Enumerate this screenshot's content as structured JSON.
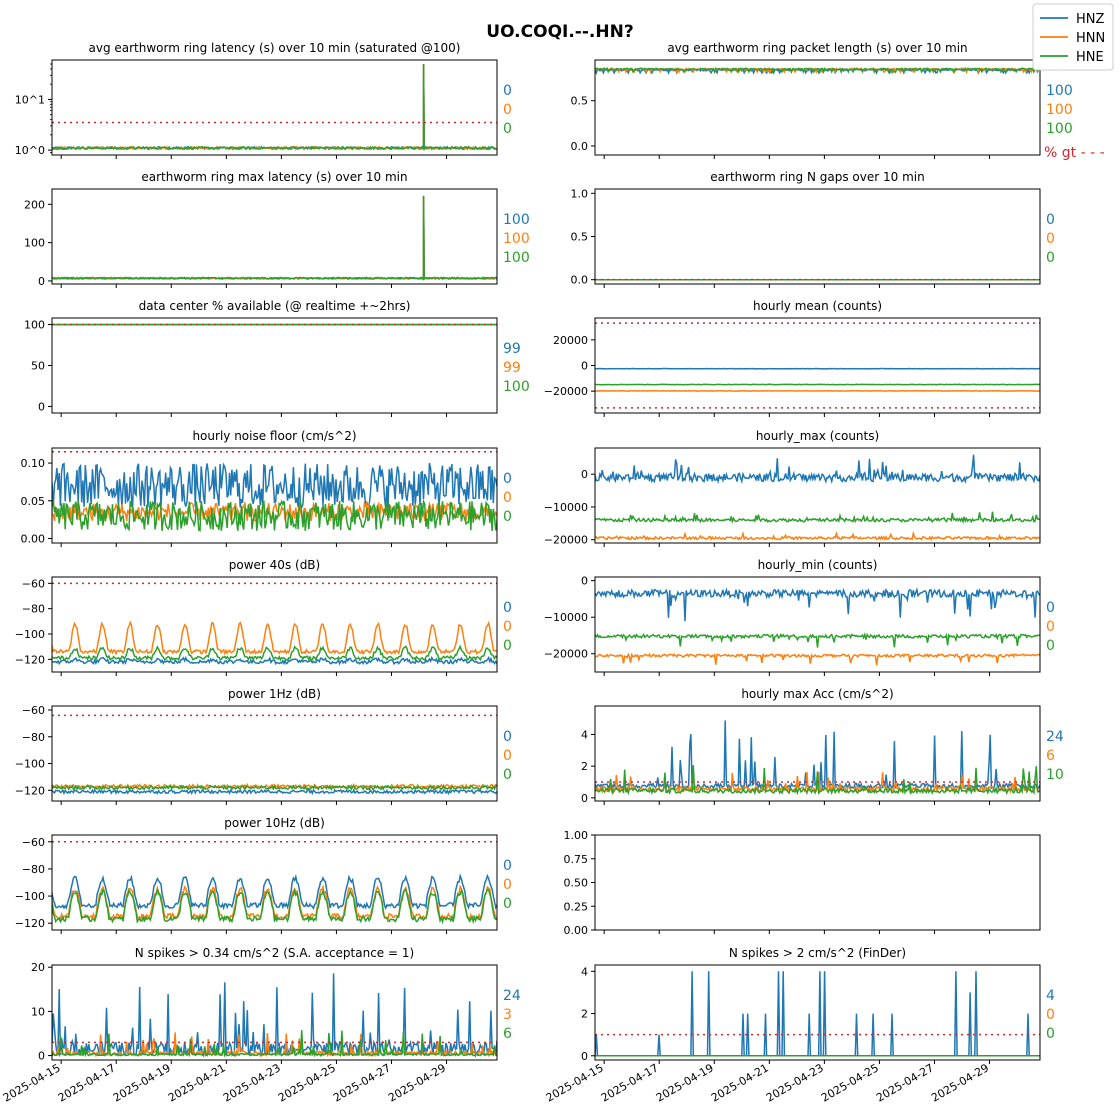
{
  "figure": {
    "title": "UO.COQI.--.HN?",
    "legend": [
      "HNZ",
      "HNN",
      "HNE"
    ],
    "legend_placement": "top-right",
    "colors": {
      "HNZ": "#1f77b4",
      "HNN": "#ff7f0e",
      "HNE": "#2ca02c",
      "threshold": "#d62728"
    },
    "pct_label": "% gt - - -",
    "x_tick_labels": [
      "2025-04-15",
      "2025-04-17",
      "2025-04-19",
      "2025-04-21",
      "2025-04-23",
      "2025-04-25",
      "2025-04-27",
      "2025-04-29"
    ]
  },
  "chart_data": [
    {
      "id": "p0",
      "type": "line",
      "title": "avg earthworm ring latency (s)   over 10 min (saturated @100)",
      "log": true,
      "ylim": [
        0.8,
        60
      ],
      "yticks": [
        1,
        10
      ],
      "ytick_labels": [
        "10^0",
        "10^1"
      ],
      "threshold": 3.5,
      "pct": [
        "0",
        "0",
        "0"
      ],
      "x": [
        "2025-04-15",
        "2025-04-30"
      ],
      "series": [
        {
          "values": [
            1.1,
            1.1
          ]
        },
        {
          "values": [
            1.1,
            1.1
          ]
        },
        {
          "values": [
            1.1,
            1.1
          ]
        }
      ],
      "spikes": [
        "2025-04-14T12:00",
        "2025-04-28T04:00"
      ],
      "spike_value": 50
    },
    {
      "id": "p1",
      "type": "line",
      "title": "avg earthworm ring packet length (s)   over 10 min",
      "ylim": [
        -0.1,
        0.95
      ],
      "yticks": [
        0,
        0.5
      ],
      "ytick_labels": [
        "0.0",
        "0.5"
      ],
      "pct": [
        "100",
        "100",
        "100"
      ],
      "x": [
        "2025-04-15",
        "2025-04-30"
      ],
      "series": [
        {
          "values": [
            0.84,
            0.84
          ]
        },
        {
          "values": [
            0.85,
            0.85
          ]
        },
        {
          "values": [
            0.85,
            0.85
          ]
        }
      ]
    },
    {
      "id": "p2",
      "type": "line",
      "title": "earthworm ring max latency (s)   over 10 min",
      "ylim": [
        -8,
        240
      ],
      "yticks": [
        0,
        100,
        200
      ],
      "ytick_labels": [
        "0",
        "100",
        "200"
      ],
      "pct": [
        "100",
        "100",
        "100"
      ],
      "x": [
        "2025-04-15",
        "2025-04-30"
      ],
      "series": [
        {
          "values": [
            5,
            5
          ]
        },
        {
          "values": [
            5,
            5
          ]
        },
        {
          "values": [
            5,
            5
          ]
        }
      ],
      "spikes": [
        "2025-04-14T12:00",
        "2025-04-28T04:00"
      ],
      "spike_value": 222
    },
    {
      "id": "p3",
      "type": "line",
      "title": "earthworm ring N gaps   over 10 min",
      "ylim": [
        -0.05,
        1.05
      ],
      "yticks": [
        0,
        0.5,
        1
      ],
      "ytick_labels": [
        "0.0",
        "0.5",
        "1.0"
      ],
      "threshold": 0,
      "pct": [
        "0",
        "0",
        "0"
      ],
      "x": [
        "2025-04-15",
        "2025-04-30"
      ],
      "series": [
        {
          "values": [
            0,
            0
          ]
        },
        {
          "values": [
            0,
            0
          ]
        },
        {
          "values": [
            0,
            0
          ]
        }
      ]
    },
    {
      "id": "p4",
      "type": "line",
      "title": "data center % available (@ realtime +~2hrs)",
      "ylim": [
        -8,
        108
      ],
      "yticks": [
        0,
        50,
        100
      ],
      "ytick_labels": [
        "0",
        "50",
        "100"
      ],
      "threshold": 100,
      "pct": [
        "99",
        "99",
        "100"
      ],
      "x": [
        "2025-04-15",
        "2025-04-30"
      ],
      "series": [
        {
          "values": [
            100,
            100
          ]
        },
        {
          "values": [
            100,
            100
          ]
        },
        {
          "values": [
            100,
            100
          ]
        }
      ]
    },
    {
      "id": "p5",
      "type": "line",
      "title": "hourly mean (counts)",
      "ylim": [
        -37000,
        37000
      ],
      "yticks": [
        -20000,
        0,
        20000
      ],
      "ytick_labels": [
        "−20000",
        "0",
        "20000"
      ],
      "threshold_pair": [
        -33000,
        33000
      ],
      "x": [
        "2025-04-15",
        "2025-04-30"
      ],
      "series": [
        {
          "values": [
            -2500,
            -2500
          ]
        },
        {
          "values": [
            -19800,
            -19800
          ]
        },
        {
          "values": [
            -14800,
            -14800
          ]
        }
      ]
    },
    {
      "id": "p6",
      "type": "line",
      "title": "hourly noise floor (cm/s^2)",
      "ylim": [
        -0.006,
        0.12
      ],
      "yticks": [
        0,
        0.05,
        0.1
      ],
      "ytick_labels": [
        "0.00",
        "0.05",
        "0.10"
      ],
      "threshold": 0.115,
      "pct": [
        "0",
        "0",
        "0"
      ],
      "x": [
        "2025-04-15",
        "2025-04-30"
      ],
      "series": [
        {
          "values": [
            0.07,
            0.07
          ]
        },
        {
          "values": [
            0.035,
            0.035
          ]
        },
        {
          "values": [
            0.03,
            0.03
          ]
        }
      ]
    },
    {
      "id": "p7",
      "type": "line",
      "title": "hourly_max (counts)",
      "ylim": [
        -21000,
        8000
      ],
      "yticks": [
        -20000,
        -10000,
        0
      ],
      "ytick_labels": [
        "−20000",
        "−10000",
        "0"
      ],
      "x": [
        "2025-04-15",
        "2025-04-30"
      ],
      "series": [
        {
          "values": [
            -1000,
            -1000
          ]
        },
        {
          "values": [
            -19500,
            -19500
          ]
        },
        {
          "values": [
            -14000,
            -14000
          ]
        }
      ]
    },
    {
      "id": "p8",
      "type": "line",
      "title": "power 40s (dB)",
      "ylim": [
        -130,
        -55
      ],
      "yticks": [
        -120,
        -100,
        -80,
        -60
      ],
      "ytick_labels": [
        "−120",
        "−100",
        "−80",
        "−60"
      ],
      "threshold": -60,
      "pct": [
        "0",
        "0",
        "0"
      ],
      "x": [
        "2025-04-15",
        "2025-04-30"
      ],
      "series": [
        {
          "values": [
            -118,
            -118
          ]
        },
        {
          "values": [
            -110,
            -110
          ]
        },
        {
          "values": [
            -115,
            -115
          ]
        }
      ]
    },
    {
      "id": "p9",
      "type": "line",
      "title": "hourly_min (counts)",
      "ylim": [
        -25000,
        1000
      ],
      "yticks": [
        -20000,
        -10000,
        0
      ],
      "ytick_labels": [
        "−20000",
        "−10000",
        "0"
      ],
      "pct": [
        "0",
        "0",
        "0"
      ],
      "x": [
        "2025-04-15",
        "2025-04-30"
      ],
      "series": [
        {
          "values": [
            -3500,
            -3500
          ]
        },
        {
          "values": [
            -20500,
            -20500
          ]
        },
        {
          "values": [
            -15200,
            -15200
          ]
        }
      ]
    },
    {
      "id": "p10",
      "type": "line",
      "title": "power 1Hz (dB)",
      "ylim": [
        -128,
        -57
      ],
      "yticks": [
        -120,
        -100,
        -80,
        -60
      ],
      "ytick_labels": [
        "−120",
        "−100",
        "−80",
        "−60"
      ],
      "threshold": -64,
      "pct": [
        "0",
        "0",
        "0"
      ],
      "x": [
        "2025-04-15",
        "2025-04-30"
      ],
      "series": [
        {
          "values": [
            -121,
            -121
          ]
        },
        {
          "values": [
            -117,
            -117
          ]
        },
        {
          "values": [
            -118,
            -118
          ]
        }
      ]
    },
    {
      "id": "p11",
      "type": "line",
      "title": "hourly max Acc (cm/s^2)",
      "ylim": [
        -0.2,
        5.8
      ],
      "yticks": [
        0,
        2,
        4
      ],
      "ytick_labels": [
        "0",
        "2",
        "4"
      ],
      "threshold": 1,
      "pct": [
        "24",
        "6",
        "10"
      ],
      "x": [
        "2025-04-15",
        "2025-04-30"
      ],
      "series": [
        {
          "values": [
            0.6,
            0.6
          ]
        },
        {
          "values": [
            0.4,
            0.4
          ]
        },
        {
          "values": [
            0.3,
            0.3
          ]
        }
      ]
    },
    {
      "id": "p12",
      "type": "line",
      "title": "power 10Hz (dB)",
      "ylim": [
        -125,
        -55
      ],
      "yticks": [
        -120,
        -100,
        -80,
        -60
      ],
      "ytick_labels": [
        "−120",
        "−100",
        "−80",
        "−60"
      ],
      "threshold": -60,
      "pct": [
        "0",
        "0",
        "0"
      ],
      "x": [
        "2025-04-15",
        "2025-04-30"
      ],
      "series": [
        {
          "values": [
            -95,
            -95
          ]
        },
        {
          "values": [
            -103,
            -103
          ]
        },
        {
          "values": [
            -105,
            -105
          ]
        }
      ]
    },
    {
      "id": "p13",
      "type": "line",
      "title": "",
      "ylim": [
        0,
        1
      ],
      "yticks": [
        0,
        0.25,
        0.5,
        0.75,
        1
      ],
      "ytick_labels": [
        "0.00",
        "0.25",
        "0.50",
        "0.75",
        "1.00"
      ],
      "empty": true,
      "x": [],
      "series": []
    },
    {
      "id": "p14",
      "type": "line",
      "title": "N spikes > 0.34 cm/s^2 (S.A. acceptance = 1)",
      "ylim": [
        -1,
        20.5
      ],
      "yticks": [
        0,
        10,
        20
      ],
      "ytick_labels": [
        "0",
        "10",
        "20"
      ],
      "threshold": 3,
      "pct": [
        "24",
        "3",
        "6"
      ],
      "x": [
        "2025-04-15",
        "2025-04-30"
      ],
      "series": [
        {
          "values": [
            3,
            3
          ]
        },
        {
          "values": [
            1,
            1
          ]
        },
        {
          "values": [
            0.5,
            0.5
          ]
        }
      ]
    },
    {
      "id": "p15",
      "type": "line",
      "title": "N spikes > 2 cm/s^2 (FinDer)",
      "ylim": [
        -0.2,
        4.3
      ],
      "yticks": [
        0,
        2,
        4
      ],
      "ytick_labels": [
        "0",
        "2",
        "4"
      ],
      "threshold": 1,
      "pct": [
        "4",
        "0",
        "0"
      ],
      "x": [
        "2025-04-15",
        "2025-04-30"
      ],
      "series": [
        {
          "values": [
            0,
            0
          ]
        },
        {
          "values": [
            0,
            0
          ]
        },
        {
          "values": [
            0,
            0
          ]
        }
      ]
    }
  ]
}
